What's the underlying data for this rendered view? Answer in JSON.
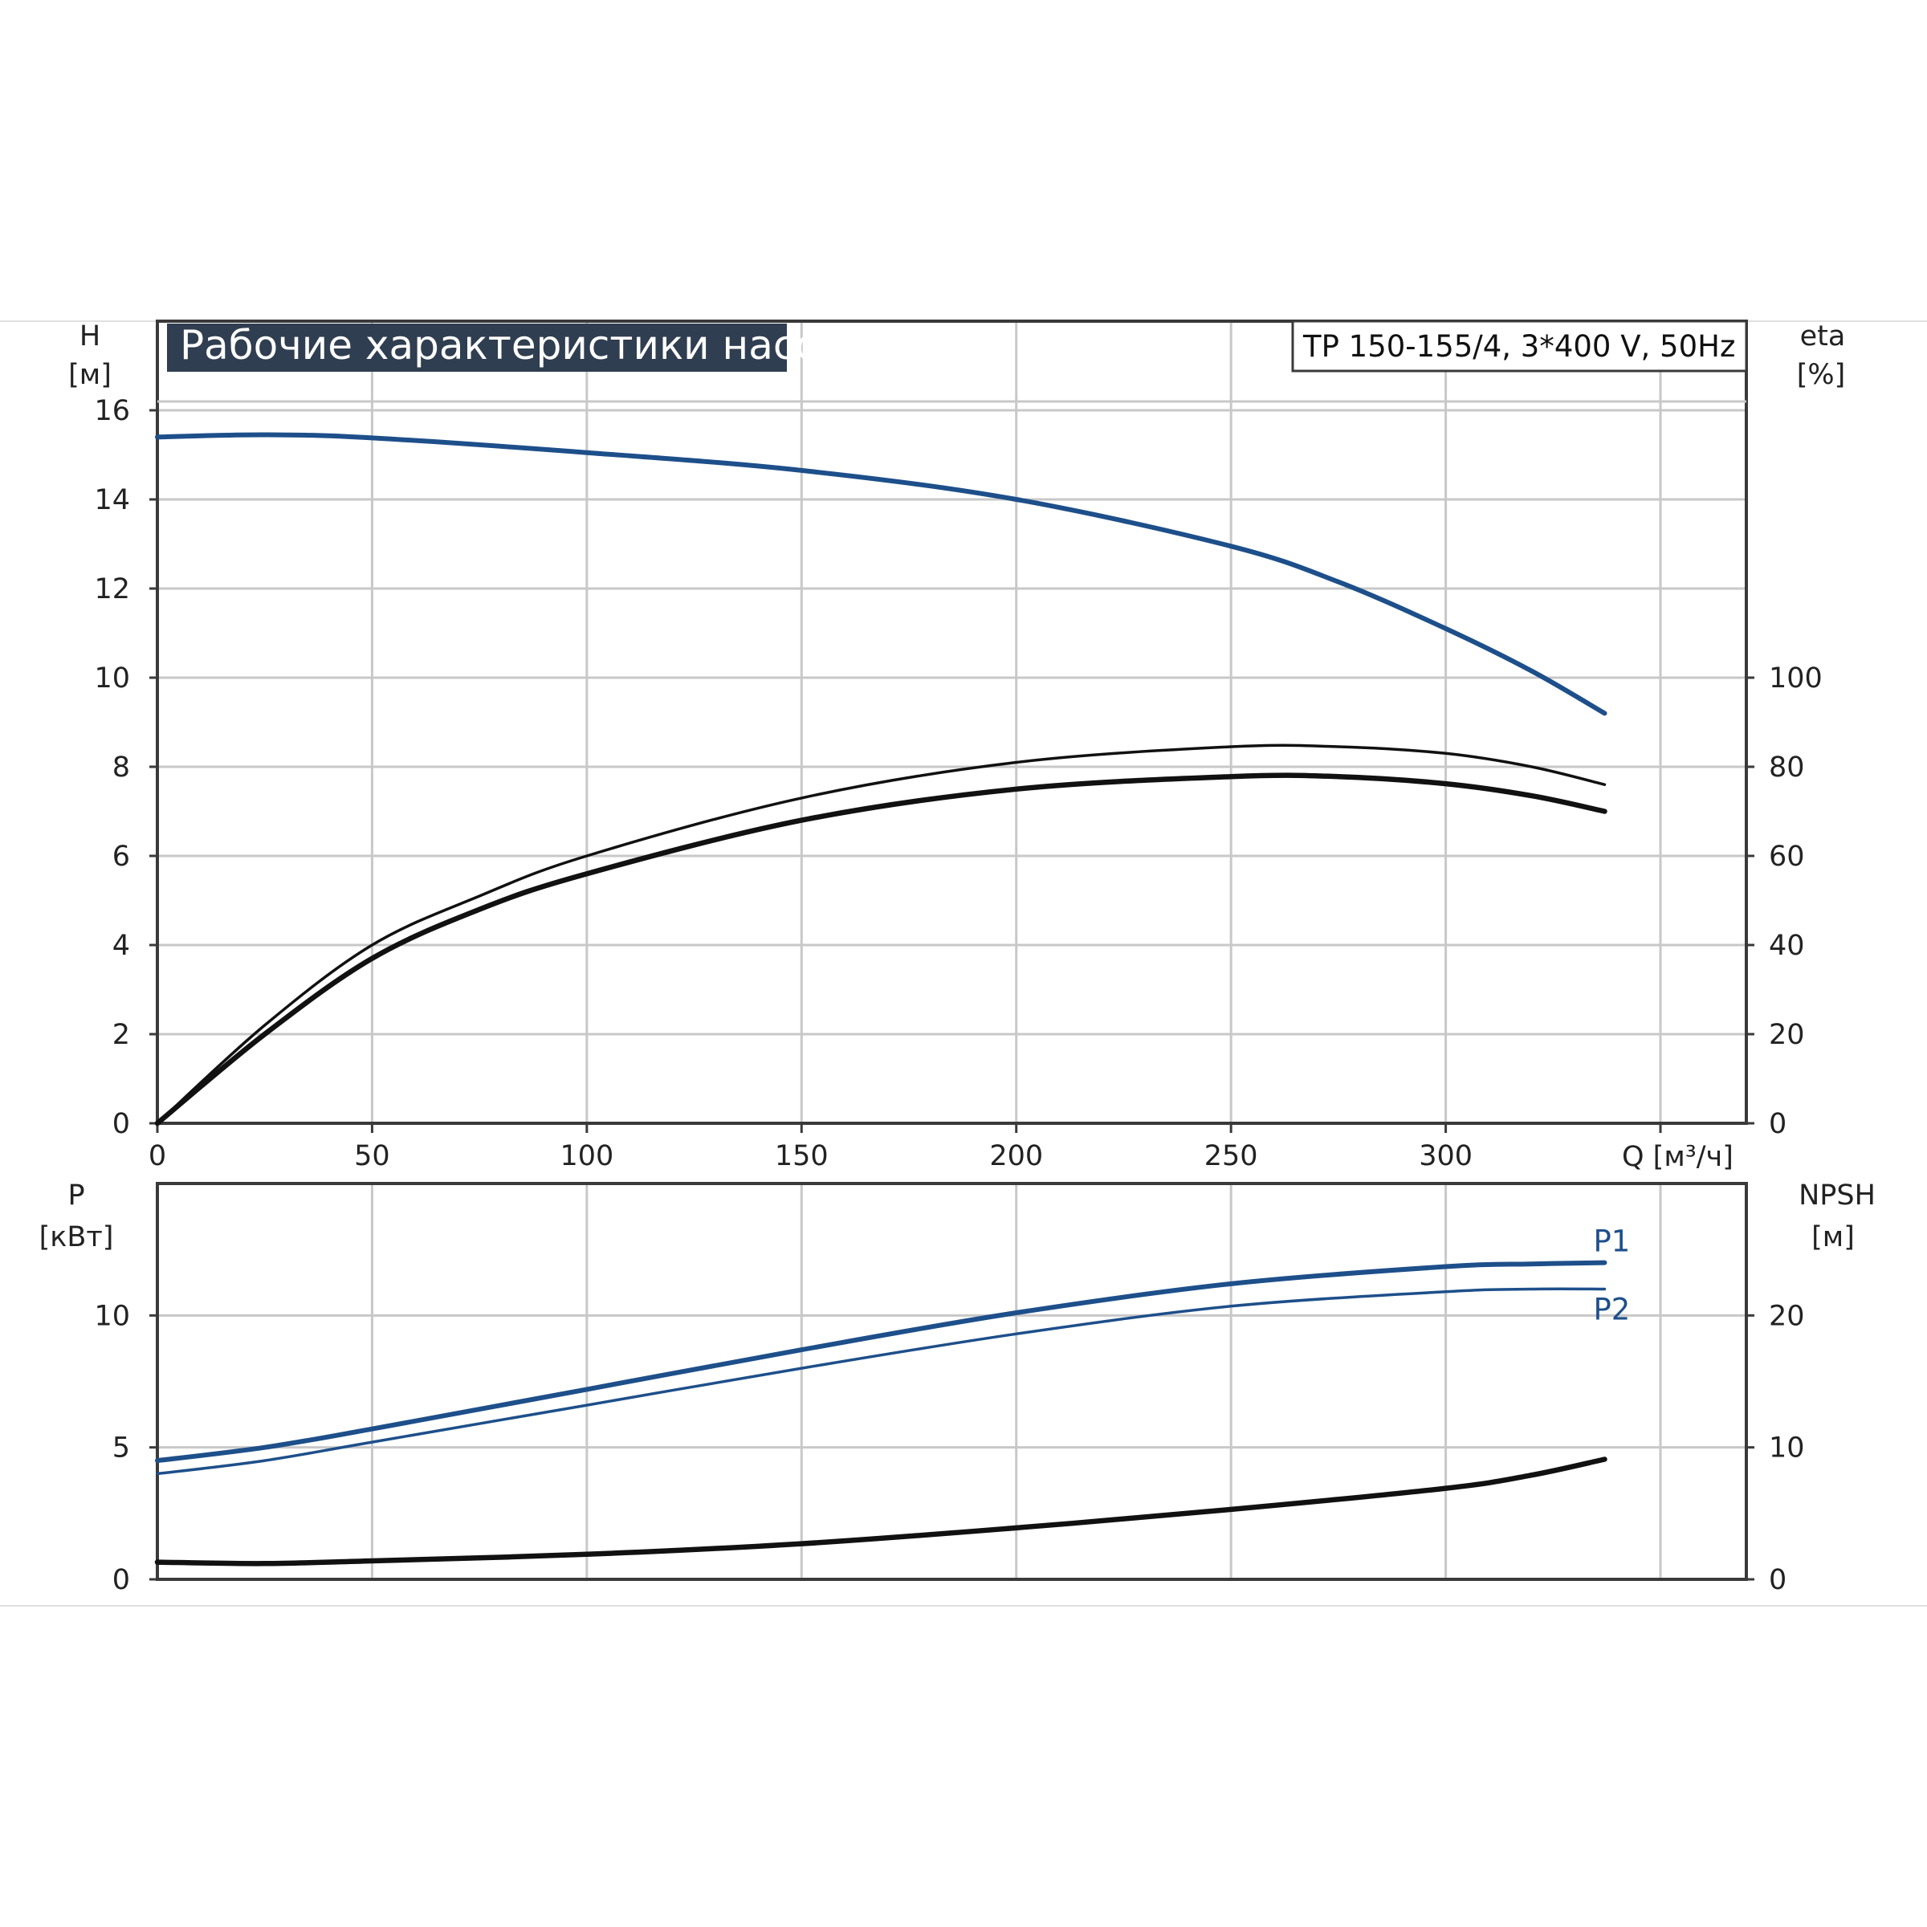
{
  "colors": {
    "blue": "#1d4f8a",
    "black": "#111111",
    "grid": "#c8c8c8",
    "frame": "#3a3a3a",
    "title_bg": "#2f3e50"
  },
  "header": {
    "title": "Рабочие характеристики насоса",
    "model": "TP 150-155/4, 3*400 V, 50Hz"
  },
  "chart_data": [
    {
      "type": "line",
      "top": {
        "ylabel_left": "H",
        "yunit_left": "[м]",
        "ylabel_right": "eta",
        "yunit_right": "[%]",
        "xlabel": "Q [м³/ч]",
        "xlim": [
          0,
          370
        ],
        "ylim_left": [
          0,
          18
        ],
        "ylim_right": [
          0,
          180
        ],
        "x_ticks": [
          "0",
          "50",
          "100",
          "150",
          "200",
          "250",
          "300"
        ],
        "y_ticks_left": [
          "0",
          "2",
          "4",
          "6",
          "8",
          "10",
          "12",
          "14",
          "16"
        ],
        "y_ticks_right": [
          "0",
          "20",
          "40",
          "60",
          "80",
          "100"
        ],
        "grid": true,
        "series": [
          {
            "axis": "left",
            "style": "blue-thick",
            "x": [
              0,
              25,
              50,
              100,
              150,
              200,
              250,
              275,
              300,
              320,
              337
            ],
            "y": [
              15.4,
              15.45,
              15.38,
              15.05,
              14.65,
              14.0,
              12.95,
              12.15,
              11.1,
              10.15,
              9.2
            ]
          },
          {
            "axis": "right",
            "style": "black-thin",
            "x": [
              0,
              25,
              50,
              75,
              100,
              150,
              200,
              250,
              275,
              300,
              320,
              337
            ],
            "y": [
              0,
              22,
              40,
              51,
              60,
              73,
              81,
              84.5,
              84.5,
              83,
              80,
              76
            ]
          },
          {
            "axis": "right",
            "style": "black-thick",
            "x": [
              0,
              25,
              50,
              75,
              100,
              150,
              200,
              250,
              275,
              300,
              320,
              337
            ],
            "y": [
              0,
              20,
              37,
              48,
              56,
              68,
              75,
              77.8,
              77.8,
              76.2,
              73.5,
              70
            ]
          }
        ]
      },
      "bottom": {
        "ylabel_left": "P",
        "yunit_left": "[кВт]",
        "ylabel_right": "NPSH",
        "yunit_right": "[м]",
        "xlim": [
          0,
          370
        ],
        "ylim_left": [
          0,
          15
        ],
        "ylim_right": [
          0,
          30
        ],
        "y_ticks_left": [
          "0",
          "5",
          "10"
        ],
        "y_ticks_right": [
          "0",
          "10",
          "20"
        ],
        "grid": true,
        "series": [
          {
            "name": "P1",
            "axis": "left",
            "style": "blue-thick",
            "x": [
              0,
              25,
              50,
              100,
              150,
              200,
              250,
              300,
              320,
              337
            ],
            "y": [
              4.5,
              5.0,
              5.7,
              7.2,
              8.7,
              10.1,
              11.2,
              11.85,
              11.95,
              12.0
            ]
          },
          {
            "name": "P2",
            "axis": "left",
            "style": "blue-thin",
            "x": [
              0,
              25,
              50,
              100,
              150,
              200,
              250,
              300,
              320,
              337
            ],
            "y": [
              4.0,
              4.5,
              5.2,
              6.6,
              8.0,
              9.3,
              10.35,
              10.9,
              11.0,
              11.0
            ]
          },
          {
            "axis": "right",
            "style": "black-thick",
            "x": [
              0,
              25,
              50,
              100,
              150,
              200,
              250,
              300,
              320,
              337
            ],
            "y": [
              1.3,
              1.2,
              1.4,
              1.9,
              2.7,
              3.9,
              5.3,
              6.9,
              7.9,
              9.1
            ]
          }
        ]
      }
    }
  ]
}
